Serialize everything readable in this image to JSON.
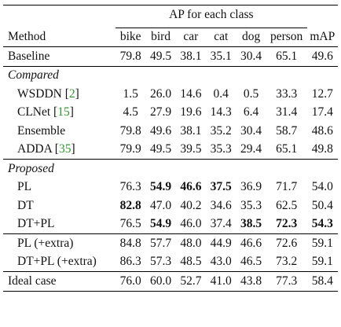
{
  "header": {
    "group_label": "AP for each class",
    "method_label": "Method",
    "columns": [
      "bike",
      "bird",
      "car",
      "cat",
      "dog",
      "person",
      "mAP"
    ]
  },
  "rows": {
    "baseline": {
      "method": "Baseline",
      "values": [
        "79.8",
        "49.5",
        "38.1",
        "35.1",
        "30.4",
        "65.1",
        "49.6"
      ],
      "bold": []
    },
    "compared_label": "Compared",
    "wsddn": {
      "method": "WSDDN [",
      "cite": "2",
      "method_close": "]",
      "values": [
        "1.5",
        "26.0",
        "14.6",
        "0.4",
        "0.5",
        "33.3",
        "12.7"
      ],
      "bold": []
    },
    "clnet": {
      "method": "CLNet [",
      "cite": "15",
      "method_close": "]",
      "values": [
        "4.5",
        "27.9",
        "19.6",
        "14.3",
        "6.4",
        "31.4",
        "17.4"
      ],
      "bold": []
    },
    "ensemble": {
      "method": "Ensemble",
      "values": [
        "79.8",
        "49.6",
        "38.1",
        "35.2",
        "30.4",
        "58.7",
        "48.6"
      ],
      "bold": []
    },
    "adda": {
      "method": "ADDA [",
      "cite": "35",
      "method_close": "]",
      "values": [
        "79.9",
        "49.5",
        "39.5",
        "35.3",
        "29.4",
        "65.1",
        "49.8"
      ],
      "bold": []
    },
    "proposed_label": "Proposed",
    "pl": {
      "method": "PL",
      "values": [
        "76.3",
        "54.9",
        "46.6",
        "37.5",
        "36.9",
        "71.7",
        "54.0"
      ],
      "bold": [
        1,
        2,
        3
      ]
    },
    "dt": {
      "method": "DT",
      "values": [
        "82.8",
        "47.0",
        "40.2",
        "34.6",
        "35.3",
        "62.5",
        "50.4"
      ],
      "bold": [
        0
      ]
    },
    "dtpl": {
      "method": "DT+PL",
      "values": [
        "76.5",
        "54.9",
        "46.0",
        "37.4",
        "38.5",
        "72.3",
        "54.3"
      ],
      "bold": [
        1,
        4,
        5,
        6
      ]
    },
    "pl_extra": {
      "method": "PL (+extra)",
      "values": [
        "84.8",
        "57.7",
        "48.0",
        "44.9",
        "46.6",
        "72.6",
        "59.1"
      ],
      "bold": []
    },
    "dtpl_extra": {
      "method": "DT+PL (+extra)",
      "values": [
        "86.3",
        "57.3",
        "48.5",
        "43.0",
        "46.5",
        "73.2",
        "59.1"
      ],
      "bold": []
    },
    "ideal": {
      "method": "Ideal case",
      "values": [
        "76.0",
        "60.0",
        "52.7",
        "41.0",
        "43.8",
        "77.3",
        "58.4"
      ],
      "bold": []
    }
  }
}
